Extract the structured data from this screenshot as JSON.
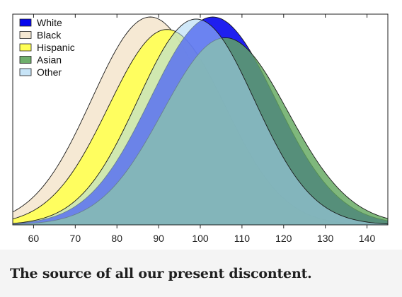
{
  "chart_data": {
    "type": "area",
    "title": "",
    "xlabel": "",
    "ylabel": "",
    "xlim": [
      55,
      145
    ],
    "ylim": [
      0,
      1
    ],
    "x_ticks": [
      60,
      70,
      80,
      90,
      100,
      110,
      120,
      130,
      140
    ],
    "grid": false,
    "legend_position": "top-left",
    "series": [
      {
        "name": "White",
        "mean": 103,
        "sd": 15,
        "peak": 1.0,
        "color": "#0000ee",
        "opacity": 0.88
      },
      {
        "name": "Black",
        "mean": 88,
        "sd": 14,
        "peak": 1.0,
        "color": "#f5e8d2",
        "opacity": 0.95
      },
      {
        "name": "Hispanic",
        "mean": 92,
        "sd": 14,
        "peak": 0.94,
        "color": "#ffff55",
        "opacity": 0.92
      },
      {
        "name": "Asian",
        "mean": 106,
        "sd": 15,
        "peak": 0.9,
        "color": "#63a85f",
        "opacity": 0.82
      },
      {
        "name": "Other",
        "mean": 99,
        "sd": 14,
        "peak": 0.99,
        "color": "#a9d6f2",
        "opacity": 0.55
      }
    ],
    "draw_order": [
      "Black",
      "Hispanic",
      "White",
      "Asian",
      "Other"
    ]
  },
  "caption": "The source of all our present discontent."
}
